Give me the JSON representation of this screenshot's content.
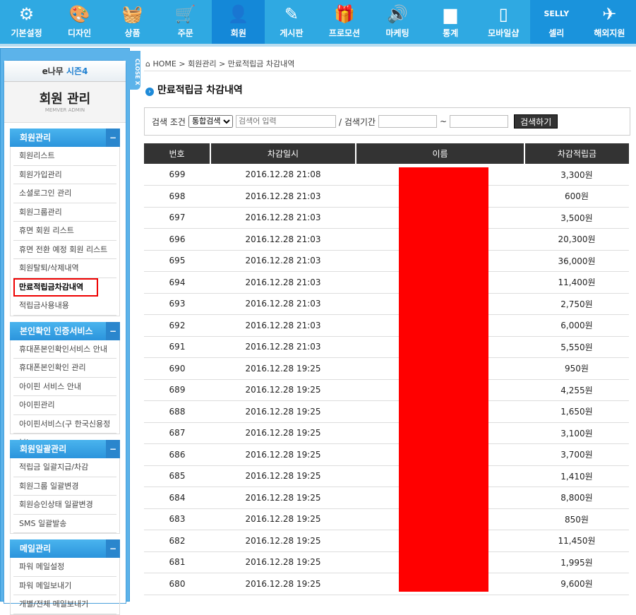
{
  "topnav": [
    {
      "label": "기본설정",
      "icon": "gear-icon",
      "glyph": "⚙"
    },
    {
      "label": "디자인",
      "icon": "palette-icon",
      "glyph": "🎨"
    },
    {
      "label": "상품",
      "icon": "basket-icon",
      "glyph": "🧺"
    },
    {
      "label": "주문",
      "icon": "cart-icon",
      "glyph": "🛒"
    },
    {
      "label": "회원",
      "icon": "user-icon",
      "glyph": "👤",
      "active": true
    },
    {
      "label": "게시판",
      "icon": "pencil-icon",
      "glyph": "✎"
    },
    {
      "label": "프로모션",
      "icon": "gift-icon",
      "glyph": "🎁"
    },
    {
      "label": "마케팅",
      "icon": "speaker-icon",
      "glyph": "🔊"
    },
    {
      "label": "통계",
      "icon": "bar-chart-icon",
      "glyph": "▆"
    },
    {
      "label": "모바일샵",
      "icon": "mobile-icon",
      "glyph": "▯"
    },
    {
      "label": "셀리",
      "icon": "selly-icon",
      "glyph": "SELLY"
    },
    {
      "label": "해외지원",
      "icon": "airplane-icon",
      "glyph": "✈"
    }
  ],
  "sidebar": {
    "close_label": "CLOSE X",
    "brand": "e나무",
    "brand_season": "시즌4",
    "title": "회원 관리",
    "subtitle": "MEMVER ADMIN",
    "groups": [
      {
        "title": "회원관리",
        "items": [
          "회원리스트",
          "회원가입관리",
          "소셜로그인 관리",
          "회원그룹관리",
          "휴면 회원 리스트",
          "휴면 전환 예정 회원 리스트",
          "회원탈퇴/삭제내역",
          "만료적립금차감내역",
          "적립금사용내용"
        ]
      },
      {
        "title": "본인확인 인증서비스",
        "items": [
          "휴대폰본인확인서비스 안내",
          "휴대폰본인확인 관리",
          "아이핀 서비스 안내",
          "아이핀관리",
          "아이핀서비스(구 한국신용정보)"
        ]
      },
      {
        "title": "회원일괄관리",
        "items": [
          "적립금 일괄지급/차감",
          "회원그룹 일괄변경",
          "회원승인상태 일괄변경",
          "SMS 일괄발송"
        ]
      },
      {
        "title": "메일관리",
        "items": [
          "파워 메일설정",
          "파워 메일보내기",
          "개별/전체 메일보내기"
        ]
      }
    ],
    "selected": "만료적립금차감내역"
  },
  "breadcrumb": {
    "home": "HOME",
    "sep": ">",
    "level1": "회원관리",
    "level2": "만료적립금 차감내역"
  },
  "page_title": "만료적립금 차감내역",
  "search": {
    "label": "검색 조건",
    "select_value": "통합검색",
    "keyword_placeholder": "검색어 입력",
    "period_label": "/ 검색기간",
    "tilde": "~",
    "button": "검색하기"
  },
  "table": {
    "headers": [
      "번호",
      "차감일시",
      "이름",
      "차감적립금"
    ],
    "rows": [
      [
        "699",
        "2016.12.28 21:08",
        "",
        "3,300원"
      ],
      [
        "698",
        "2016.12.28 21:03",
        "",
        "600원"
      ],
      [
        "697",
        "2016.12.28 21:03",
        "",
        "3,500원"
      ],
      [
        "696",
        "2016.12.28 21:03",
        "",
        "20,300원"
      ],
      [
        "695",
        "2016.12.28 21:03",
        "",
        "36,000원"
      ],
      [
        "694",
        "2016.12.28 21:03",
        "",
        "11,400원"
      ],
      [
        "693",
        "2016.12.28 21:03",
        "",
        "2,750원"
      ],
      [
        "692",
        "2016.12.28 21:03",
        "",
        "6,000원"
      ],
      [
        "691",
        "2016.12.28 21:03",
        "",
        "5,550원"
      ],
      [
        "690",
        "2016.12.28 19:25",
        "",
        "950원"
      ],
      [
        "689",
        "2016.12.28 19:25",
        "",
        "4,255원"
      ],
      [
        "688",
        "2016.12.28 19:25",
        "",
        "1,650원"
      ],
      [
        "687",
        "2016.12.28 19:25",
        "",
        "3,100원"
      ],
      [
        "686",
        "2016.12.28 19:25",
        "",
        "3,700원"
      ],
      [
        "685",
        "2016.12.28 19:25",
        "",
        "1,410원"
      ],
      [
        "684",
        "2016.12.28 19:25",
        "",
        "8,800원"
      ],
      [
        "683",
        "2016.12.28 19:25",
        "",
        "850원"
      ],
      [
        "682",
        "2016.12.28 19:25",
        "",
        "11,450원"
      ],
      [
        "681",
        "2016.12.28 19:25",
        "",
        "1,995원"
      ],
      [
        "680",
        "2016.12.28 19:25",
        "",
        "9,600원"
      ]
    ]
  },
  "colors": {
    "nav": "#2fa9e2",
    "nav_active": "#1488d8",
    "redaction": "#ff0000",
    "highlight": "#e00000"
  }
}
